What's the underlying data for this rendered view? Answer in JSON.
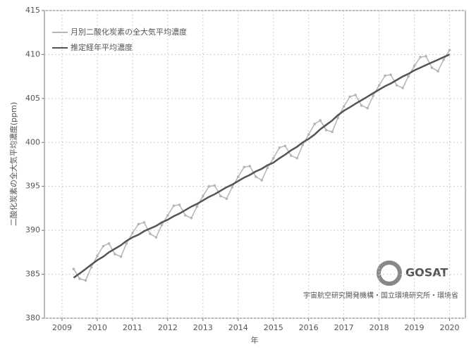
{
  "chart_data": {
    "type": "line",
    "y_label": "二酸化炭素の全大気平均濃度(ppm)",
    "x_label": "年",
    "credit": "宇宙航空研究開発機構・国立環境研究所・環境省",
    "logo_text": "GOSAT",
    "x": [
      2009.33,
      2009.5,
      2009.67,
      2009.83,
      2010,
      2010.17,
      2010.33,
      2010.5,
      2010.67,
      2010.83,
      2011,
      2011.17,
      2011.33,
      2011.5,
      2011.67,
      2011.83,
      2012,
      2012.17,
      2012.33,
      2012.5,
      2012.67,
      2012.83,
      2013,
      2013.17,
      2013.33,
      2013.5,
      2013.67,
      2013.83,
      2014,
      2014.17,
      2014.33,
      2014.5,
      2014.67,
      2014.83,
      2015,
      2015.17,
      2015.33,
      2015.5,
      2015.67,
      2015.83,
      2016,
      2016.17,
      2016.33,
      2016.5,
      2016.67,
      2016.83,
      2017,
      2017.17,
      2017.33,
      2017.5,
      2017.67,
      2017.83,
      2018,
      2018.17,
      2018.33,
      2018.5,
      2018.67,
      2018.83,
      2019,
      2019.17,
      2019.33,
      2019.5,
      2019.67,
      2019.83,
      2020
    ],
    "series": [
      {
        "name": "月別二酸化炭素の全大気平均濃度",
        "color": "#b5b5b5",
        "values": [
          385.6,
          384.5,
          384.3,
          385.8,
          387.1,
          388.2,
          388.5,
          387.3,
          387.0,
          388.5,
          389.7,
          390.7,
          390.9,
          389.6,
          389.2,
          390.6,
          391.7,
          392.8,
          392.9,
          391.7,
          391.4,
          392.7,
          393.9,
          395.0,
          395.1,
          393.9,
          393.6,
          394.9,
          396.1,
          397.2,
          397.3,
          396.1,
          395.7,
          397.1,
          398.2,
          399.4,
          399.6,
          398.5,
          398.2,
          399.7,
          400.9,
          402.1,
          402.5,
          401.4,
          401.2,
          402.8,
          404.1,
          405.2,
          405.4,
          404.2,
          403.9,
          405.3,
          406.5,
          407.6,
          407.7,
          406.5,
          406.2,
          407.5,
          408.7,
          409.7,
          409.8,
          408.5,
          408.1,
          409.4,
          410.5
        ]
      },
      {
        "name": "推定経年平均濃度",
        "color": "#555555",
        "values": [
          384.6,
          385.1,
          385.6,
          386.1,
          386.6,
          387.0,
          387.5,
          387.9,
          388.3,
          388.8,
          389.2,
          389.5,
          389.9,
          390.2,
          390.5,
          390.9,
          391.2,
          391.6,
          391.9,
          392.3,
          392.7,
          393.0,
          393.4,
          393.8,
          394.1,
          394.5,
          394.9,
          395.2,
          395.6,
          396.0,
          396.3,
          396.7,
          397.0,
          397.4,
          397.7,
          398.2,
          398.6,
          399.1,
          399.5,
          400.0,
          400.4,
          400.9,
          401.5,
          402.0,
          402.5,
          403.1,
          403.6,
          404.0,
          404.4,
          404.8,
          405.2,
          405.6,
          406.0,
          406.4,
          406.7,
          407.1,
          407.5,
          407.8,
          408.2,
          408.5,
          408.8,
          409.1,
          409.4,
          409.7,
          410.0
        ]
      }
    ],
    "xlim": [
      2008.5,
      2020.45
    ],
    "xticks": [
      2009,
      2010,
      2011,
      2012,
      2013,
      2014,
      2015,
      2016,
      2017,
      2018,
      2019,
      2020
    ],
    "ylim": [
      380,
      415
    ],
    "yticks": [
      380,
      385,
      390,
      395,
      400,
      405,
      410,
      415
    ],
    "grid": true
  }
}
